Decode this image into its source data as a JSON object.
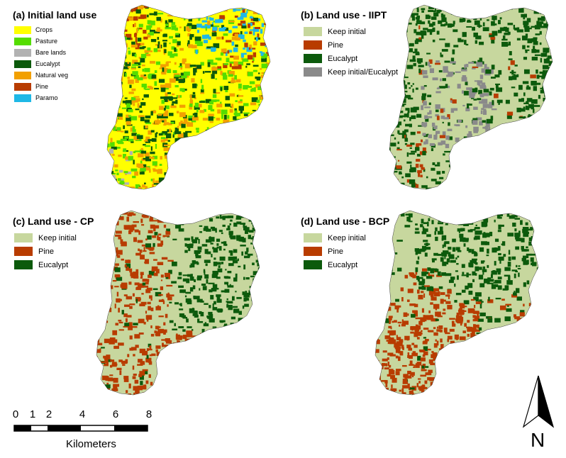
{
  "panels": {
    "a": {
      "title": "(a) Initial land use",
      "legend": [
        {
          "label": "Crops",
          "color": "#ffff00"
        },
        {
          "label": "Pasture",
          "color": "#55dd00"
        },
        {
          "label": "Bare lands",
          "color": "#b2b2b2"
        },
        {
          "label": "Eucalypt",
          "color": "#0c5a0c"
        },
        {
          "label": "Natural veg",
          "color": "#f2a000"
        },
        {
          "label": "Pine",
          "color": "#b83c00"
        },
        {
          "label": "Paramo",
          "color": "#1fb8e6"
        }
      ]
    },
    "b": {
      "title": "(b) Land use - IIPT",
      "legend": [
        {
          "label": "Keep initial",
          "color": "#c7d79e"
        },
        {
          "label": "Pine",
          "color": "#b83c00"
        },
        {
          "label": "Eucalypt",
          "color": "#0c5a0c"
        },
        {
          "label": "Keep initial/Eucalypt",
          "color": "#8a8a8a"
        }
      ]
    },
    "c": {
      "title": "(c) Land use - CP",
      "legend": [
        {
          "label": "Keep initial",
          "color": "#c7d79e"
        },
        {
          "label": "Pine",
          "color": "#b83c00"
        },
        {
          "label": "Eucalypt",
          "color": "#0c5a0c"
        }
      ]
    },
    "d": {
      "title": "(d) Land use - BCP",
      "legend": [
        {
          "label": "Keep initial",
          "color": "#c7d79e"
        },
        {
          "label": "Pine",
          "color": "#b83c00"
        },
        {
          "label": "Eucalypt",
          "color": "#0c5a0c"
        }
      ]
    }
  },
  "scale_bar": {
    "ticks": [
      "0",
      "1",
      "2",
      "4",
      "6",
      "8"
    ],
    "unit": "Kilometers"
  },
  "north_arrow": {
    "label": "N",
    "icon": "north-arrow-icon"
  }
}
